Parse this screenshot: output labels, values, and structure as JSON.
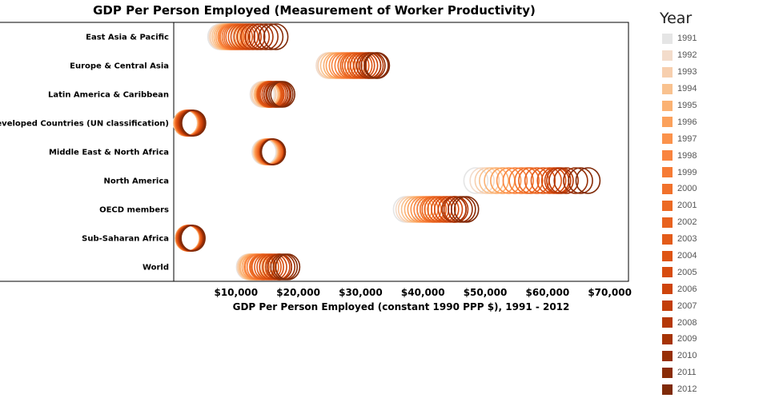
{
  "chart_data": {
    "type": "scatter",
    "title": "GDP Per Person Employed (Measurement of Worker Productivity)",
    "xlabel": "GDP Per Person Employed (constant 1990 PPP $), 1991 - 2012",
    "ylabel": "",
    "xlim": [
      0,
      73000
    ],
    "x_ticks": [
      10000,
      20000,
      30000,
      40000,
      50000,
      60000,
      70000
    ],
    "x_tick_labels": [
      "$10,000",
      "$20,000",
      "$30,000",
      "$40,000",
      "$50,000",
      "$60,000",
      "$70,000"
    ],
    "categories": [
      "East Asia & Pacific",
      "Europe & Central Asia",
      "Latin America & Caribbean",
      "Least Developed Countries (UN classification)",
      "Middle East & North Africa",
      "North America",
      "OECD members",
      "Sub-Saharan Africa",
      "World"
    ],
    "legend_title": "Year",
    "legend_position": "right",
    "years": [
      1991,
      1992,
      1993,
      1994,
      1995,
      1996,
      1997,
      1998,
      1999,
      2000,
      2001,
      2002,
      2003,
      2004,
      2005,
      2006,
      2007,
      2008,
      2009,
      2010,
      2011,
      2012
    ],
    "year_colors": [
      "#e5e5e5",
      "#f3dccb",
      "#f7cfae",
      "#f9c28f",
      "#fbb273",
      "#fba15b",
      "#fb924b",
      "#f9843f",
      "#f67b35",
      "#f1712b",
      "#ec6a24",
      "#e8621f",
      "#e35b19",
      "#de5414",
      "#d74c0f",
      "#ce440b",
      "#c33e09",
      "#b53807",
      "#a63306",
      "#972f06",
      "#8a2c07",
      "#7f2a08"
    ],
    "series": [
      {
        "category": "East Asia & Pacific",
        "values": [
          7400,
          7600,
          7800,
          8100,
          8400,
          8700,
          9000,
          9200,
          9400,
          9700,
          10000,
          10300,
          10700,
          11100,
          11600,
          12100,
          12700,
          13400,
          14000,
          14800,
          15600,
          16400
        ]
      },
      {
        "category": "Europe & Central Asia",
        "values": [
          25000,
          24800,
          25100,
          25500,
          26000,
          26400,
          26900,
          27300,
          27800,
          28300,
          28700,
          29000,
          29400,
          29900,
          30300,
          30800,
          31300,
          31700,
          31300,
          32000,
          32500,
          32700
        ]
      },
      {
        "category": "Latin America & Caribbean",
        "values": [
          14200,
          14300,
          14500,
          14800,
          15000,
          15100,
          15300,
          15400,
          15300,
          15500,
          15400,
          15300,
          15400,
          15600,
          15800,
          16100,
          16400,
          16700,
          16400,
          16900,
          17200,
          17500
        ]
      },
      {
        "category": "Least Developed Countries (UN classification)",
        "values": [
          1900,
          1900,
          1900,
          1950,
          2000,
          2050,
          2100,
          2150,
          2200,
          2250,
          2300,
          2350,
          2400,
          2450,
          2550,
          2650,
          2750,
          2850,
          2900,
          3000,
          3100,
          3200
        ]
      },
      {
        "category": "Middle East & North Africa",
        "values": [
          14500,
          14600,
          14700,
          14800,
          14900,
          15000,
          15100,
          15200,
          15300,
          15400,
          15500,
          15600,
          15600,
          15700,
          15700,
          15800,
          15900,
          15900,
          15800,
          15900,
          15900,
          16000
        ]
      },
      {
        "category": "North America",
        "values": [
          48500,
          49500,
          50300,
          51000,
          51800,
          52800,
          53800,
          54800,
          55800,
          56700,
          57300,
          58300,
          59300,
          60300,
          61000,
          61500,
          61800,
          62200,
          63000,
          64500,
          65300,
          66500
        ]
      },
      {
        "category": "OECD members",
        "values": [
          37200,
          37600,
          38000,
          38500,
          39000,
          39500,
          40000,
          40500,
          41000,
          41500,
          41800,
          42200,
          42700,
          43300,
          43800,
          44400,
          45000,
          45300,
          45000,
          46000,
          46500,
          47000
        ]
      },
      {
        "category": "Sub-Saharan Africa",
        "values": [
          2200,
          2200,
          2200,
          2200,
          2250,
          2300,
          2300,
          2350,
          2350,
          2400,
          2400,
          2450,
          2500,
          2550,
          2600,
          2700,
          2750,
          2800,
          2850,
          2900,
          3000,
          3100
        ]
      },
      {
        "category": "World",
        "values": [
          12000,
          12100,
          12200,
          12400,
          12600,
          12900,
          13200,
          13400,
          13700,
          14100,
          14300,
          14500,
          14900,
          15300,
          15700,
          16200,
          16700,
          17000,
          17000,
          17500,
          17900,
          18300
        ]
      }
    ]
  }
}
